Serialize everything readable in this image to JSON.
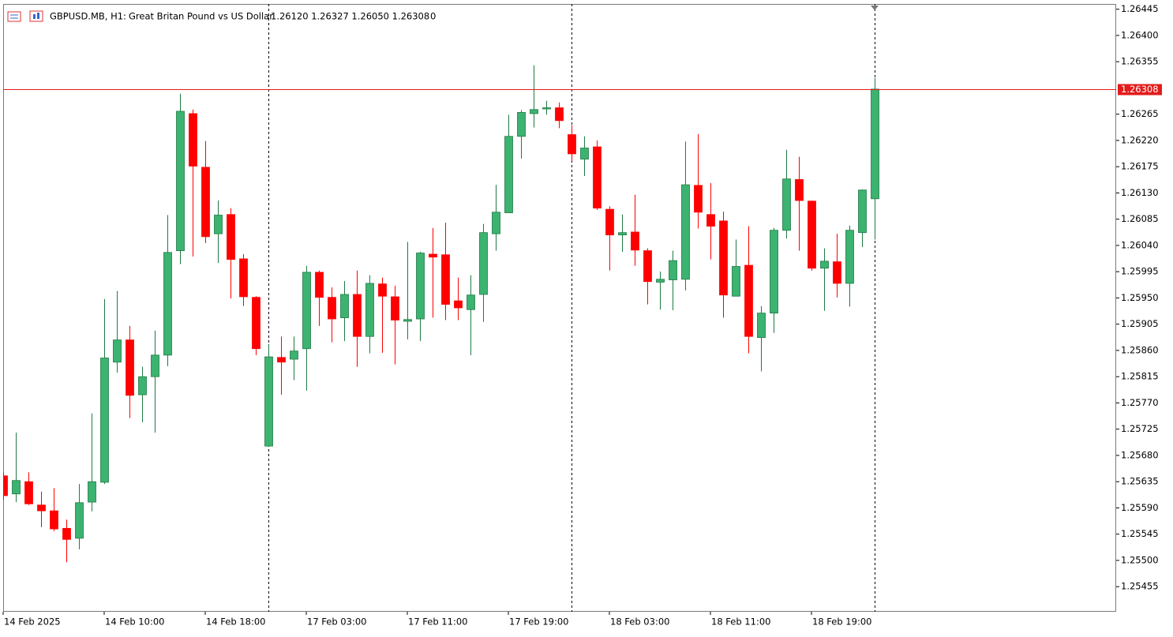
{
  "header": {
    "symbol": "GBPUSD.MB, H1:",
    "description": "Great Britan Pound vs US Dollar",
    "ohlc": "1.26120 1.26327 1.26050 1.26308",
    "volume": "0"
  },
  "chart_data": {
    "type": "candlestick",
    "up_color": "#3cb371",
    "down_color": "#ff0000",
    "price_line_color": "#e31c1c",
    "current_price": 1.26308,
    "ylim": [
      1.25412,
      1.26454
    ],
    "yticks": [
      1.26445,
      {
        "value": 1.264,
        "label": "1.26400"
      },
      1.26355,
      1.26265,
      {
        "value": 1.2622,
        "label": "1.26220"
      },
      1.26175,
      {
        "value": 1.2613,
        "label": "1.26130"
      },
      1.26085,
      {
        "value": 1.2604,
        "label": "1.26040"
      },
      1.25995,
      {
        "value": 1.2595,
        "label": "1.25950"
      },
      1.25905,
      {
        "value": 1.2586,
        "label": "1.25860"
      },
      1.25815,
      {
        "value": 1.2577,
        "label": "1.25770"
      },
      1.25725,
      {
        "value": 1.2568,
        "label": "1.25680"
      },
      1.25635,
      {
        "value": 1.2559,
        "label": "1.25590"
      },
      1.25545,
      {
        "value": 1.255,
        "label": "1.25500"
      },
      1.25455
    ],
    "categories": [
      "14 Feb 2025",
      null,
      null,
      null,
      null,
      null,
      null,
      null,
      "14 Feb 10:00",
      null,
      null,
      null,
      null,
      null,
      null,
      null,
      "14 Feb 18:00",
      null,
      null,
      null,
      null,
      null,
      null,
      null,
      "17 Feb 03:00",
      null,
      null,
      null,
      null,
      null,
      null,
      null,
      "17 Feb 11:00",
      null,
      null,
      null,
      null,
      null,
      null,
      null,
      "17 Feb 19:00",
      null,
      null,
      null,
      null,
      null,
      null,
      null,
      "18 Feb 03:00",
      null,
      null,
      null,
      null,
      null,
      null,
      null,
      "18 Feb 11:00",
      null,
      null,
      null,
      null,
      null,
      null,
      null,
      "18 Feb 19:00",
      null,
      null,
      null,
      null,
      null
    ],
    "period_separators": [
      21,
      45,
      69
    ],
    "open": [
      1.25645,
      1.25614,
      1.25635,
      1.25595,
      1.25585,
      1.25555,
      1.25538,
      1.256,
      1.25634,
      1.2584,
      1.25878,
      1.25784,
      1.25815,
      1.25852,
      1.26031,
      1.26266,
      1.26174,
      1.2606,
      1.26093,
      1.26017,
      1.25951,
      1.25696,
      1.25848,
      1.25845,
      1.25863,
      1.25994,
      1.25951,
      1.25916,
      1.25956,
      1.25884,
      1.25974,
      1.25952,
      1.2591,
      1.25914,
      1.26025,
      1.26024,
      1.25945,
      1.2593,
      1.25956,
      1.2606,
      1.26096,
      1.26227,
      1.26266,
      1.26274,
      1.26276,
      1.2623,
      1.26188,
      1.26209,
      1.26102,
      1.26058,
      1.26063,
      1.26031,
      1.25977,
      1.25981,
      1.25982,
      1.26143,
      1.26093,
      1.26082,
      1.25953,
      1.26006,
      1.25882,
      1.25924,
      1.26066,
      1.26153,
      1.26116,
      1.26001,
      1.26012,
      1.25975,
      1.26062,
      1.2612
    ],
    "high": [
      1.25651,
      1.25719,
      1.25651,
      1.25618,
      1.25624,
      1.2557,
      1.25631,
      1.25752,
      1.25948,
      1.25962,
      1.25902,
      1.25832,
      1.25894,
      1.26092,
      1.263,
      1.26273,
      1.26219,
      1.26117,
      1.26104,
      1.26025,
      1.25953,
      1.25871,
      1.25884,
      1.25884,
      1.26005,
      1.25997,
      1.25968,
      1.25979,
      1.25997,
      1.25989,
      1.25985,
      1.25971,
      1.26046,
      1.26029,
      1.2607,
      1.26079,
      1.25985,
      1.25989,
      1.26077,
      1.26144,
      1.26264,
      1.26272,
      1.26349,
      1.26288,
      1.26285,
      1.26246,
      1.26227,
      1.2622,
      1.26107,
      1.26093,
      1.26127,
      1.26035,
      1.25995,
      1.26031,
      1.26218,
      1.26231,
      1.26147,
      1.26098,
      1.2605,
      1.26073,
      1.25936,
      1.2607,
      1.26204,
      1.26192,
      1.26117,
      1.26035,
      1.2606,
      1.26074,
      1.26136,
      1.26327
    ],
    "low": [
      1.25604,
      1.256,
      1.25595,
      1.25557,
      1.2555,
      1.25497,
      1.25519,
      1.25584,
      1.25631,
      1.25822,
      1.25744,
      1.25737,
      1.25719,
      1.25833,
      1.26008,
      1.26021,
      1.26044,
      1.2601,
      1.25949,
      1.25936,
      1.25852,
      1.25695,
      1.25784,
      1.25809,
      1.25791,
      1.25902,
      1.25874,
      1.25876,
      1.25832,
      1.25855,
      1.25856,
      1.25836,
      1.25879,
      1.25876,
      1.25916,
      1.25912,
      1.25912,
      1.25852,
      1.25909,
      1.26031,
      1.26096,
      1.26189,
      1.26242,
      1.26264,
      1.26241,
      1.26185,
      1.26159,
      1.26101,
      1.25997,
      1.26029,
      1.26005,
      1.25939,
      1.2593,
      1.25929,
      1.25963,
      1.26069,
      1.26016,
      1.25916,
      1.25953,
      1.25855,
      1.25824,
      1.2589,
      1.26052,
      1.26031,
      1.25997,
      1.25928,
      1.25951,
      1.25935,
      1.26037,
      1.2605
    ],
    "close": [
      1.25611,
      1.25637,
      1.25597,
      1.25585,
      1.25554,
      1.25536,
      1.25599,
      1.25635,
      1.25847,
      1.25878,
      1.25783,
      1.25815,
      1.25852,
      1.26028,
      1.2627,
      1.26176,
      1.26055,
      1.26092,
      1.26016,
      1.25952,
      1.25863,
      1.25849,
      1.2584,
      1.25859,
      1.25994,
      1.25951,
      1.25914,
      1.25956,
      1.25884,
      1.25975,
      1.25953,
      1.25912,
      1.25913,
      1.26027,
      1.2602,
      1.25939,
      1.25933,
      1.25955,
      1.26062,
      1.26097,
      1.26227,
      1.26268,
      1.26273,
      1.26276,
      1.26254,
      1.26197,
      1.26207,
      1.26104,
      1.26058,
      1.26062,
      1.26032,
      1.25978,
      1.25982,
      1.26014,
      1.26144,
      1.26097,
      1.26073,
      1.25955,
      1.26004,
      1.25884,
      1.25924,
      1.26066,
      1.26154,
      1.26117,
      1.26001,
      1.26013,
      1.25975,
      1.26066,
      1.26135,
      1.26308
    ]
  }
}
